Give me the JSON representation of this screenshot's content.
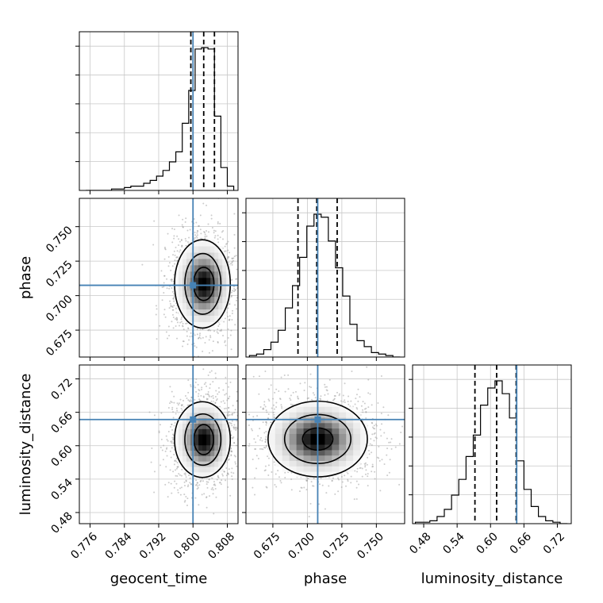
{
  "chart_data": {
    "type": "corner",
    "parameters": [
      "geocent_time",
      "phase",
      "luminosity_distance"
    ],
    "axis_labels": {
      "geocent_time": "geocent_time",
      "phase": "phase",
      "luminosity_distance": "luminosity_distance"
    },
    "ranges": {
      "geocent_time": [
        0.7735,
        0.8105
      ],
      "phase": [
        0.6555,
        0.7705
      ],
      "luminosity_distance": [
        0.46,
        0.745
      ]
    },
    "ticks": {
      "geocent_time": [
        "0.776",
        "0.784",
        "0.792",
        "0.800",
        "0.808"
      ],
      "phase": [
        "0.675",
        "0.700",
        "0.725",
        "0.750"
      ],
      "luminosity_distance": [
        "0.48",
        "0.54",
        "0.60",
        "0.66",
        "0.72"
      ]
    },
    "truths": {
      "geocent_time": 0.8,
      "phase": 0.7075,
      "luminosity_distance": 0.647
    },
    "quantiles": {
      "geocent_time": [
        0.7995,
        0.8025,
        0.805
      ],
      "phase": [
        0.6932,
        0.7068,
        0.7216
      ],
      "luminosity_distance": [
        0.572,
        0.611,
        0.646
      ]
    },
    "histograms": {
      "geocent_time": {
        "edges": [
          0.775,
          0.7765,
          0.778,
          0.7795,
          0.781,
          0.7825,
          0.784,
          0.7855,
          0.787,
          0.7885,
          0.79,
          0.7915,
          0.793,
          0.7945,
          0.796,
          0.7975,
          0.799,
          0.8005,
          0.802,
          0.8035,
          0.805,
          0.8065,
          0.808,
          0.8095
        ],
        "counts": [
          0,
          0,
          0,
          0,
          1,
          1,
          2,
          3,
          3,
          5,
          7,
          10,
          14,
          20,
          27,
          47,
          70,
          99,
          100,
          99,
          52,
          16,
          3
        ]
      },
      "phase": {
        "edges": [
          0.658,
          0.6632,
          0.6684,
          0.6736,
          0.6788,
          0.684,
          0.6892,
          0.6944,
          0.6996,
          0.7048,
          0.71,
          0.7152,
          0.7204,
          0.7256,
          0.7308,
          0.736,
          0.7412,
          0.7464,
          0.7516,
          0.7568,
          0.762,
          0.7672
        ],
        "counts": [
          1,
          2,
          5,
          10,
          18,
          33,
          48,
          67,
          88,
          96,
          94,
          78,
          60,
          41,
          22,
          11,
          7,
          3,
          2,
          1,
          0
        ]
      },
      "luminosity_distance": {
        "edges": [
          0.465,
          0.478,
          0.491,
          0.504,
          0.517,
          0.53,
          0.543,
          0.556,
          0.569,
          0.582,
          0.595,
          0.608,
          0.621,
          0.634,
          0.647,
          0.66,
          0.673,
          0.686,
          0.699,
          0.712,
          0.725,
          0.738
        ],
        "counts": [
          1,
          1,
          2,
          5,
          10,
          20,
          31,
          47,
          62,
          83,
          95,
          100,
          91,
          74,
          44,
          24,
          12,
          5,
          2,
          1,
          0
        ]
      }
    },
    "contours": [
      {
        "x": "geocent_time",
        "y": "phase",
        "levels": [
          {
            "cx": 0.8022,
            "cy": 0.7085,
            "rx": 0.0065,
            "ry": 0.032
          },
          {
            "cx": 0.8023,
            "cy": 0.7085,
            "rx": 0.0042,
            "ry": 0.022
          },
          {
            "cx": 0.8025,
            "cy": 0.7085,
            "rx": 0.0024,
            "ry": 0.012
          }
        ]
      },
      {
        "x": "geocent_time",
        "y": "luminosity_distance",
        "levels": [
          {
            "cx": 0.8022,
            "cy": 0.611,
            "rx": 0.0065,
            "ry": 0.068
          },
          {
            "cx": 0.8023,
            "cy": 0.611,
            "rx": 0.0042,
            "ry": 0.046
          },
          {
            "cx": 0.8025,
            "cy": 0.611,
            "rx": 0.0023,
            "ry": 0.027
          }
        ]
      },
      {
        "x": "phase",
        "y": "luminosity_distance",
        "levels": [
          {
            "cx": 0.7075,
            "cy": 0.612,
            "rx": 0.036,
            "ry": 0.068
          },
          {
            "cx": 0.7075,
            "cy": 0.612,
            "rx": 0.024,
            "ry": 0.044
          },
          {
            "cx": 0.7075,
            "cy": 0.612,
            "rx": 0.011,
            "ry": 0.02
          }
        ]
      }
    ],
    "grid": true,
    "colors": {
      "truth": "#4682b4",
      "hist": "#000000",
      "grid": "#c8c8c8",
      "scatter": "#9a9a9a"
    }
  }
}
